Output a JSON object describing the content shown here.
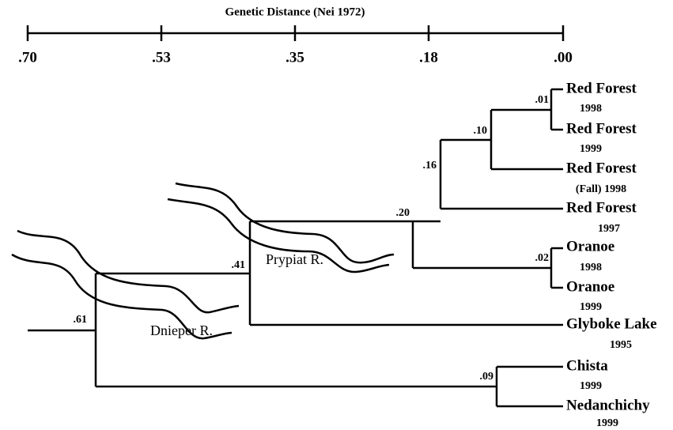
{
  "axis": {
    "title": "Genetic Distance (Nei 1972)",
    "ticks": [
      ".70",
      ".53",
      ".35",
      ".18",
      ".00"
    ]
  },
  "leaves": [
    {
      "name": "Red Forest",
      "year": "1998"
    },
    {
      "name": "Red Forest",
      "year": "1999"
    },
    {
      "name": "Red Forest",
      "year": "(Fall) 1998"
    },
    {
      "name": "Red Forest",
      "year": "1997"
    },
    {
      "name": "Oranoe",
      "year": "1998"
    },
    {
      "name": "Oranoe",
      "year": "1999"
    },
    {
      "name": "Glyboke Lake",
      "year": "1995"
    },
    {
      "name": "Chista",
      "year": "1999"
    },
    {
      "name": "Nedanchichy",
      "year": "1999"
    }
  ],
  "nodes": [
    {
      "label": ".01"
    },
    {
      "label": ".10"
    },
    {
      "label": ".16"
    },
    {
      "label": ".02"
    },
    {
      "label": ".20"
    },
    {
      "label": ".41"
    },
    {
      "label": ".09"
    },
    {
      "label": ".61"
    }
  ],
  "rivers": [
    {
      "label": "Dnieper R."
    },
    {
      "label": "Prypiat R."
    }
  ]
}
